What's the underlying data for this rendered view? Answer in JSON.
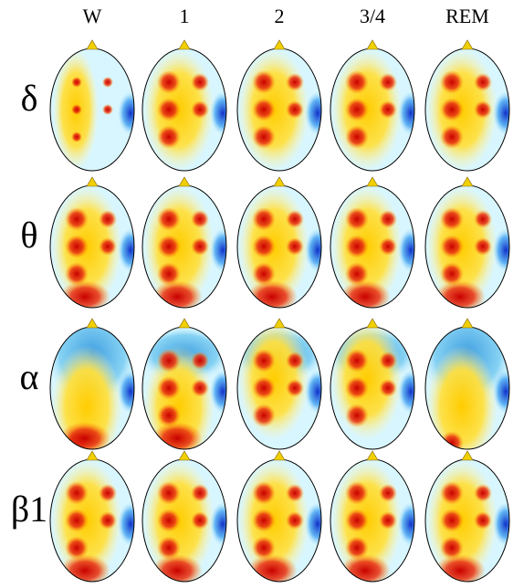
{
  "column_headers": [
    "W",
    "1",
    "2",
    "3/4",
    "REM"
  ],
  "row_labels": [
    "δ",
    "θ",
    "α",
    "β1"
  ]
}
